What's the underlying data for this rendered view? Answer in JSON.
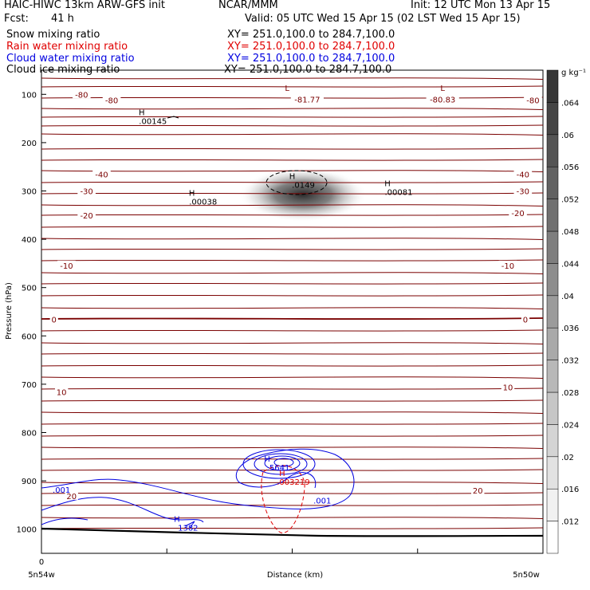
{
  "header": {
    "model": "HAIC-HIWC 13km ARW-GFS init",
    "org": "NCAR/MMM",
    "init": "Init: 12 UTC Mon 13 Apr 15",
    "fcst_label": "Fcst:",
    "fcst_value": "41 h",
    "valid": "Valid: 05 UTC Wed 15 Apr 15 (02 LST Wed 15 Apr 15)"
  },
  "fields": [
    {
      "name": "Snow mixing ratio",
      "xy": "XY= 251.0,100.0 to 284.7,100.0",
      "color": "#000000"
    },
    {
      "name": "Rain water mixing ratio",
      "xy": "XY= 251.0,100.0 to 284.7,100.0",
      "color": "#e00000"
    },
    {
      "name": "Cloud water mixing ratio",
      "xy": "XY= 251.0,100.0 to 284.7,100.0",
      "color": "#0000e0"
    },
    {
      "name": "Cloud ice mixing ratio",
      "xy": "XY= 251.0,100.0 to 284.7,100.0",
      "color": "#000000"
    }
  ],
  "colors": {
    "temperature": "#7a0000",
    "rain": "#e00000",
    "cloud_water": "#0000e0",
    "cloud_ice": "#000000",
    "terrain": "#000000"
  },
  "chart_data": {
    "type": "cross-section",
    "ylabel": "Pressure (hPa)",
    "xlabel": "Distance (km)",
    "x_start_label": "5n54w",
    "x_end_label": "5n50w",
    "x_zero_label": "0",
    "yticks": [
      100,
      200,
      300,
      400,
      500,
      600,
      700,
      800,
      900,
      1000
    ],
    "ylim": [
      50,
      1050
    ],
    "temperature_labels": [
      {
        "text": "-80",
        "p": 100,
        "x": 0.08
      },
      {
        "text": "-80",
        "p": 112,
        "x": 0.14
      },
      {
        "text": "-81.77",
        "p": 110,
        "x": 0.53
      },
      {
        "text": "-80.83",
        "p": 110,
        "x": 0.8
      },
      {
        "text": "-80",
        "p": 112,
        "x": 0.98
      },
      {
        "text": "-40",
        "p": 265,
        "x": 0.12
      },
      {
        "text": "-40",
        "p": 265,
        "x": 0.96
      },
      {
        "text": "-30",
        "p": 300,
        "x": 0.09
      },
      {
        "text": "-30",
        "p": 300,
        "x": 0.96
      },
      {
        "text": "-20",
        "p": 350,
        "x": 0.09
      },
      {
        "text": "-20",
        "p": 345,
        "x": 0.95
      },
      {
        "text": "-10",
        "p": 454,
        "x": 0.05
      },
      {
        "text": "-10",
        "p": 454,
        "x": 0.93
      },
      {
        "text": "0",
        "p": 566,
        "x": 0.025
      },
      {
        "text": "0",
        "p": 566,
        "x": 0.965
      },
      {
        "text": "10",
        "p": 716,
        "x": 0.04
      },
      {
        "text": "10",
        "p": 706,
        "x": 0.93
      },
      {
        "text": "20",
        "p": 931,
        "x": 0.06
      },
      {
        "text": "20",
        "p": 920,
        "x": 0.87
      }
    ],
    "extrema": [
      {
        "kind": "L",
        "value": "",
        "p": 93,
        "x": 0.49,
        "color": "#7a0000"
      },
      {
        "kind": "L",
        "value": "",
        "p": 93,
        "x": 0.8,
        "color": "#7a0000"
      },
      {
        "kind": "H",
        "value": ".00145",
        "p": 143,
        "x": 0.2,
        "color": "#000000"
      },
      {
        "kind": "H",
        "value": ".0149",
        "p": 275,
        "x": 0.5,
        "color": "#000000"
      },
      {
        "kind": "H",
        "value": ".00038",
        "p": 310,
        "x": 0.3,
        "color": "#000000"
      },
      {
        "kind": "H",
        "value": ".00081",
        "p": 290,
        "x": 0.69,
        "color": "#000000"
      },
      {
        "kind": "H",
        "value": ".5641",
        "p": 860,
        "x": 0.45,
        "color": "#0000e0"
      },
      {
        "kind": "H",
        "value": ".003219",
        "p": 890,
        "x": 0.48,
        "color": "#e00000"
      },
      {
        "kind": "H",
        "value": "1382",
        "p": 985,
        "x": 0.27,
        "color": "#0000e0"
      }
    ],
    "cloud_water_labels": [
      {
        "text": ".001",
        "p": 918,
        "x": 0.04
      },
      {
        "text": ".001",
        "p": 940,
        "x": 0.56
      }
    ],
    "colorbar": {
      "unit": "g kg⁻¹",
      "ticks": [
        ".012",
        ".016",
        ".02",
        ".024",
        ".028",
        ".032",
        ".036",
        ".04",
        ".044",
        ".048",
        ".052",
        ".056",
        ".06",
        ".064"
      ]
    }
  }
}
